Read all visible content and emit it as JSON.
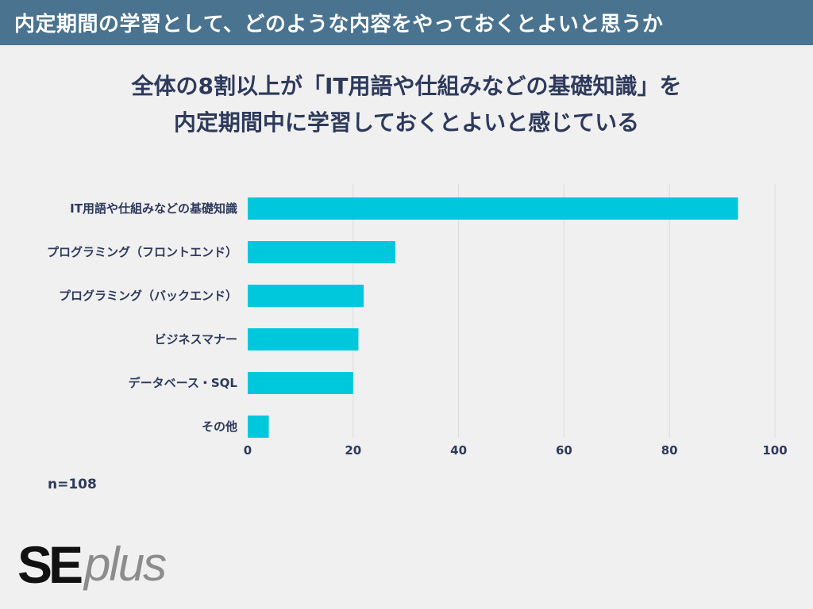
{
  "header": {
    "title": "内定期間の学習として、どのような内容をやっておくとよいと思うか"
  },
  "subtitle": {
    "line1": "全体の8割以上が「IT用語や仕組みなどの基礎知識」を",
    "line2": "内定期間中に学習しておくとよいと感じている"
  },
  "chart_data": {
    "type": "bar",
    "orientation": "horizontal",
    "categories": [
      "IT用語や仕組みなどの基礎知識",
      "プログラミング（フロントエンド）",
      "プログラミング（バックエンド）",
      "ビジネスマナー",
      "データベース・SQL",
      "その他"
    ],
    "values": [
      93,
      28,
      22,
      21,
      20,
      4
    ],
    "xlim": [
      0,
      100
    ],
    "xticks": [
      0,
      20,
      40,
      60,
      80,
      100
    ],
    "bar_color": "#00c8dc",
    "grid": true
  },
  "note": "n=108",
  "logo": {
    "part1": "SE",
    "part2": "plus"
  }
}
